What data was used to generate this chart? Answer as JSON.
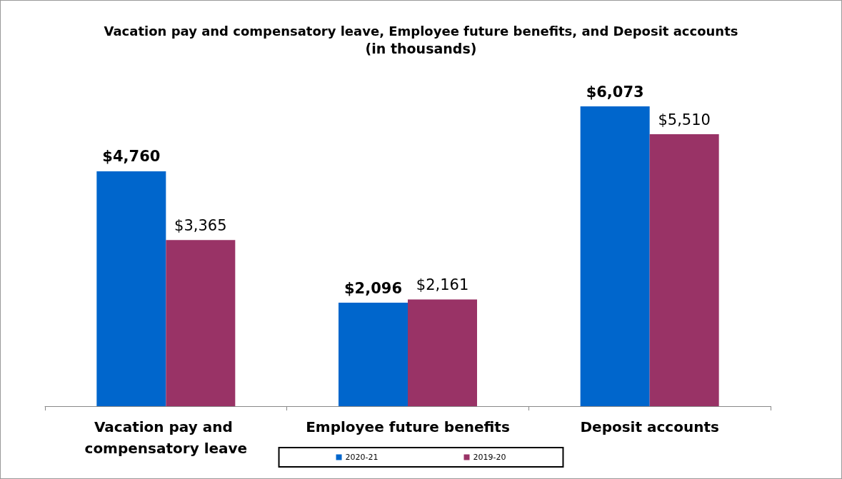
{
  "chart_data": {
    "type": "bar",
    "title": "Vacation pay and compensatory leave, Employee future benefits, and Deposit accounts",
    "subtitle": "(in thousands)",
    "categories": [
      "Vacation pay and compensatory leave",
      "Employee future benefits",
      "Deposit accounts"
    ],
    "series": [
      {
        "name": "2020-21",
        "color": "#0066cc",
        "values": [
          4760,
          2096,
          6073
        ],
        "value_labels": [
          "$4,760",
          "$2,096",
          "$6,073"
        ]
      },
      {
        "name": "2019-20",
        "color": "#993366",
        "values": [
          3365,
          2161,
          5510
        ],
        "value_labels": [
          "$3,365",
          "$2,161",
          "$5,510"
        ]
      }
    ],
    "legend": "bottom"
  }
}
